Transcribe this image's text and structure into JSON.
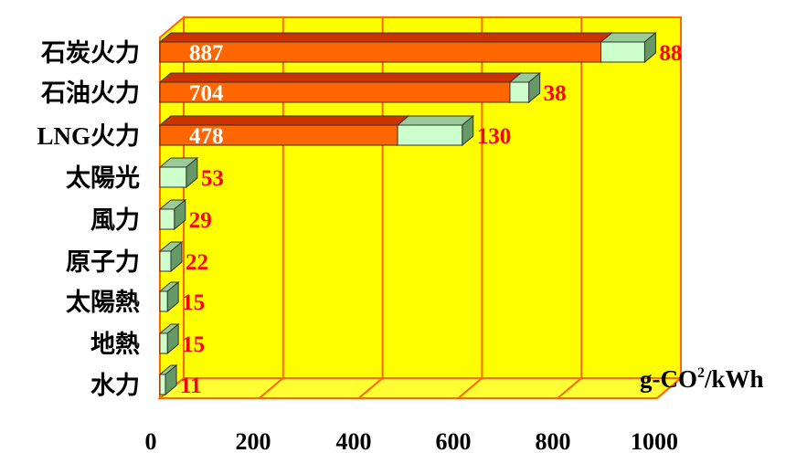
{
  "chart_data": {
    "type": "bar",
    "orientation": "horizontal",
    "stacked": true,
    "three_d": true,
    "categories": [
      "石炭火力",
      "石油火力",
      "LNG火力",
      "太陽光",
      "風力",
      "原子力",
      "太陽熱",
      "地熱",
      "水力"
    ],
    "series": [
      {
        "values": [
          887,
          704,
          478,
          0,
          0,
          0,
          0,
          0,
          0
        ],
        "color": "#ff6600"
      },
      {
        "values": [
          88,
          38,
          130,
          53,
          29,
          22,
          15,
          15,
          11
        ],
        "color": "#ccffcc"
      }
    ],
    "data_labels": {
      "fossil": [
        "887",
        "704",
        "478"
      ],
      "other": [
        "88",
        "38",
        "130",
        "53",
        "29",
        "22",
        "15",
        "15",
        "11"
      ]
    },
    "x_ticks": [
      "0",
      "200",
      "400",
      "600",
      "800",
      "1000"
    ],
    "xlim": [
      0,
      1000
    ],
    "unit": {
      "base": "g-CO",
      "sup": "2",
      "tail": "/kWh"
    },
    "grid": true,
    "colors": {
      "plot_back": "#ffff00",
      "floor": "#ffff33",
      "frame": "#ff6600",
      "fossil_top": "#cc3300",
      "fossil_side": "#993300",
      "other_top": "#99cc99",
      "other_side": "#669966",
      "value_text_other": "#ff0000",
      "value_text_fossil": "#ffffff"
    }
  }
}
